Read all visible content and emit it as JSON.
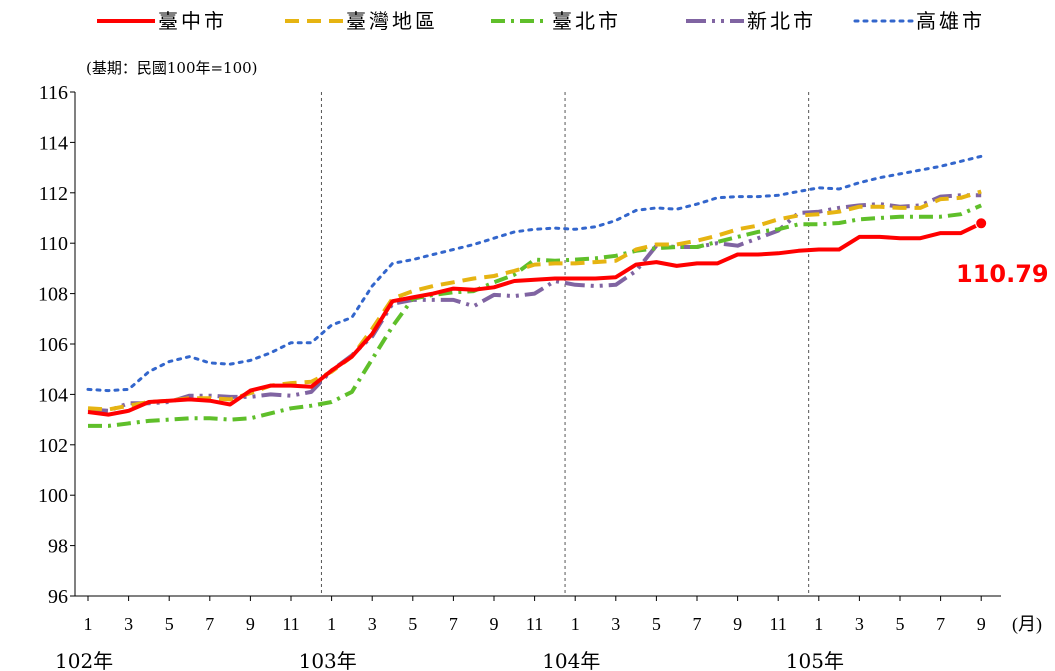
{
  "chart_data": {
    "type": "line",
    "note": "(基期：民國100年=100)",
    "unit_label": "(月)",
    "ylim": [
      96,
      116
    ],
    "yticks": [
      96,
      98,
      100,
      102,
      104,
      106,
      108,
      110,
      112,
      114,
      116
    ],
    "xtick_labels": [
      "1",
      "3",
      "5",
      "7",
      "9",
      "11",
      "1",
      "3",
      "5",
      "7",
      "9",
      "11",
      "1",
      "3",
      "5",
      "7",
      "9",
      "11",
      "1",
      "3",
      "5",
      "7",
      "9"
    ],
    "year_labels": [
      "102年",
      "103年",
      "104年",
      "105年"
    ],
    "callout": {
      "text": "110.79",
      "color": "#ff0000",
      "value": 110.79
    },
    "series": [
      {
        "name": "臺中市",
        "color": "#ff0000",
        "dash": "solid",
        "values": [
          103.3,
          103.2,
          103.35,
          103.7,
          103.75,
          103.8,
          103.75,
          103.6,
          104.15,
          104.35,
          104.35,
          104.3,
          104.95,
          105.5,
          106.4,
          107.7,
          107.85,
          108.0,
          108.2,
          108.15,
          108.25,
          108.5,
          108.55,
          108.6,
          108.6,
          108.6,
          108.65,
          109.15,
          109.25,
          109.1,
          109.2,
          109.2,
          109.55,
          109.55,
          109.6,
          109.7,
          109.75,
          109.75,
          110.25,
          110.25,
          110.2,
          110.2,
          110.4,
          110.4,
          110.79
        ]
      },
      {
        "name": "臺灣地區",
        "color": "#e6b412",
        "dash": "dash",
        "values": [
          103.45,
          103.4,
          103.55,
          103.7,
          103.75,
          103.85,
          103.85,
          103.8,
          104.05,
          104.35,
          104.45,
          104.5,
          104.9,
          105.5,
          106.6,
          107.8,
          108.1,
          108.3,
          108.45,
          108.6,
          108.7,
          108.9,
          109.15,
          109.2,
          109.2,
          109.25,
          109.3,
          109.75,
          109.95,
          109.95,
          110.1,
          110.3,
          110.55,
          110.7,
          110.95,
          111.1,
          111.15,
          111.25,
          111.45,
          111.45,
          111.4,
          111.4,
          111.75,
          111.8,
          112.05
        ]
      },
      {
        "name": "臺北市",
        "color": "#5fbf2a",
        "dash": "dashdot",
        "values": [
          102.75,
          102.75,
          102.85,
          102.95,
          103.0,
          103.05,
          103.05,
          103.0,
          103.05,
          103.25,
          103.45,
          103.55,
          103.7,
          104.1,
          105.4,
          106.7,
          107.8,
          107.95,
          108.05,
          108.1,
          108.45,
          108.75,
          109.35,
          109.3,
          109.35,
          109.4,
          109.5,
          109.7,
          109.8,
          109.85,
          109.85,
          110.05,
          110.25,
          110.45,
          110.55,
          110.75,
          110.75,
          110.8,
          110.95,
          111.0,
          111.05,
          111.05,
          111.05,
          111.15,
          111.5
        ]
      },
      {
        "name": "新北市",
        "color": "#8064a2",
        "dash": "dashdotdot",
        "values": [
          103.4,
          103.35,
          103.65,
          103.65,
          103.7,
          103.95,
          103.95,
          103.9,
          103.9,
          104.0,
          103.95,
          104.1,
          104.95,
          105.55,
          106.3,
          107.6,
          107.75,
          107.75,
          107.75,
          107.5,
          107.95,
          107.9,
          108.0,
          108.5,
          108.35,
          108.3,
          108.35,
          108.9,
          109.9,
          109.85,
          109.85,
          110.0,
          109.9,
          110.2,
          110.5,
          111.2,
          111.25,
          111.4,
          111.5,
          111.55,
          111.45,
          111.5,
          111.85,
          111.9,
          111.9
        ]
      },
      {
        "name": "高雄市",
        "color": "#3366cc",
        "dash": "dot",
        "values": [
          104.2,
          104.15,
          104.2,
          104.9,
          105.3,
          105.5,
          105.25,
          105.2,
          105.35,
          105.65,
          106.05,
          106.05,
          106.75,
          107.05,
          108.3,
          109.2,
          109.35,
          109.55,
          109.75,
          109.95,
          110.2,
          110.45,
          110.55,
          110.6,
          110.55,
          110.65,
          110.9,
          111.3,
          111.4,
          111.35,
          111.55,
          111.8,
          111.85,
          111.85,
          111.9,
          112.05,
          112.2,
          112.15,
          112.4,
          112.6,
          112.75,
          112.9,
          113.05,
          113.25,
          113.45
        ]
      }
    ]
  }
}
